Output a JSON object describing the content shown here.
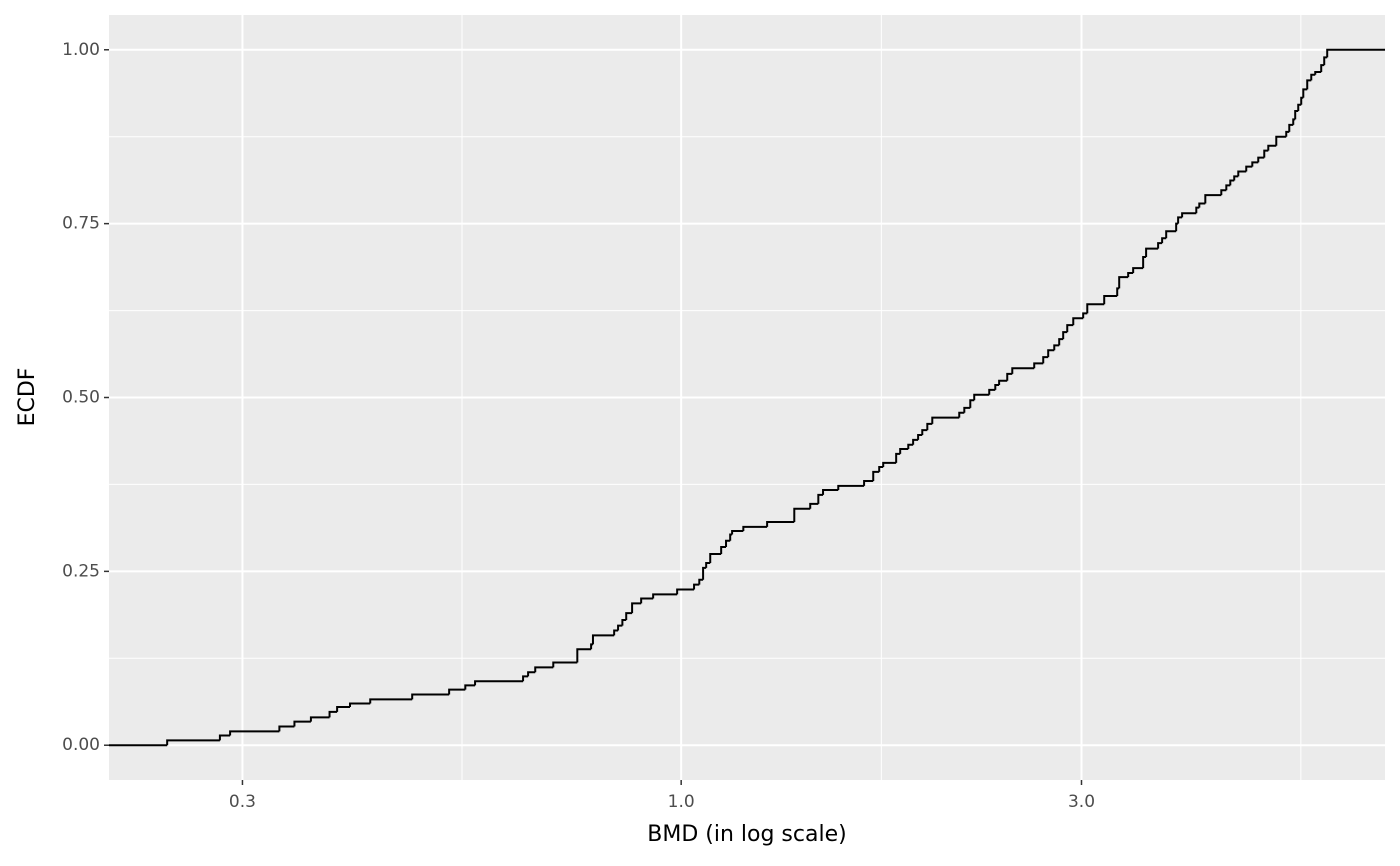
{
  "chart_data": {
    "type": "step",
    "xlabel": "BMD (in log scale)",
    "ylabel": "ECDF",
    "log_x": true,
    "grid": true,
    "color": "#000000",
    "xlim": [
      0.208,
      6.9
    ],
    "ylim": [
      -0.05,
      1.05
    ],
    "xticks": [
      0.3,
      {
        "value": 1,
        "label": "1.0"
      },
      {
        "value": 3,
        "label": "3.0"
      }
    ],
    "xminorticks": [
      0.548,
      1.732,
      5.477
    ],
    "yticks": [
      {
        "value": 0,
        "label": "0.00"
      },
      {
        "value": 0.25,
        "label": "0.25"
      },
      {
        "value": 0.5,
        "label": "0.50"
      },
      {
        "value": 0.75,
        "label": "0.75"
      },
      {
        "value": 1,
        "label": "1.00"
      }
    ],
    "yminorticks": [
      0.125,
      0.375,
      0.625,
      0.875
    ],
    "x": [
      0.208,
      0.244,
      0.282,
      0.29,
      0.332,
      0.346,
      0.362,
      0.381,
      0.389,
      0.403,
      0.426,
      0.478,
      0.529,
      0.553,
      0.568,
      0.648,
      0.657,
      0.67,
      0.704,
      0.752,
      0.781,
      0.785,
      0.832,
      0.841,
      0.851,
      0.86,
      0.874,
      0.896,
      0.926,
      0.989,
      1.036,
      1.051,
      1.062,
      1.071,
      1.083,
      1.116,
      1.131,
      1.144,
      1.15,
      1.186,
      1.266,
      1.364,
      1.425,
      1.457,
      1.476,
      1.539,
      1.652,
      1.694,
      1.722,
      1.741,
      1.804,
      1.824,
      1.865,
      1.89,
      1.916,
      1.938,
      1.965,
      1.992,
      2.145,
      2.175,
      2.211,
      2.235,
      2.329,
      2.368,
      2.393,
      2.447,
      2.481,
      2.635,
      2.701,
      2.738,
      2.784,
      2.822,
      2.853,
      2.885,
      2.933,
      3.014,
      3.048,
      3.193,
      3.309,
      3.327,
      3.41,
      3.457,
      3.553,
      3.582,
      3.702,
      3.743,
      3.785,
      3.89,
      3.911,
      3.954,
      4.111,
      4.145,
      4.214,
      4.403,
      4.464,
      4.513,
      4.562,
      4.613,
      4.715,
      4.794,
      4.873,
      4.954,
      5.009,
      5.12,
      5.262,
      5.306,
      5.364,
      5.393,
      5.438,
      5.483,
      5.514,
      5.574,
      5.636,
      5.698,
      5.792,
      5.84,
      5.888,
      6.9
    ],
    "values": [
      0,
      0.007,
      0.014,
      0.02,
      0.027,
      0.034,
      0.04,
      0.048,
      0.055,
      0.06,
      0.066,
      0.073,
      0.08,
      0.086,
      0.092,
      0.099,
      0.105,
      0.112,
      0.119,
      0.138,
      0.145,
      0.158,
      0.165,
      0.172,
      0.18,
      0.19,
      0.204,
      0.211,
      0.217,
      0.224,
      0.231,
      0.238,
      0.255,
      0.262,
      0.275,
      0.285,
      0.294,
      0.303,
      0.308,
      0.314,
      0.321,
      0.34,
      0.347,
      0.36,
      0.367,
      0.373,
      0.38,
      0.393,
      0.4,
      0.406,
      0.419,
      0.426,
      0.432,
      0.439,
      0.446,
      0.453,
      0.462,
      0.471,
      0.478,
      0.485,
      0.496,
      0.504,
      0.511,
      0.518,
      0.524,
      0.534,
      0.542,
      0.549,
      0.558,
      0.568,
      0.575,
      0.584,
      0.594,
      0.604,
      0.614,
      0.621,
      0.634,
      0.646,
      0.657,
      0.673,
      0.679,
      0.686,
      0.702,
      0.714,
      0.722,
      0.729,
      0.739,
      0.75,
      0.759,
      0.765,
      0.773,
      0.779,
      0.791,
      0.798,
      0.805,
      0.812,
      0.818,
      0.825,
      0.832,
      0.838,
      0.845,
      0.855,
      0.862,
      0.875,
      0.882,
      0.892,
      0.9,
      0.912,
      0.921,
      0.931,
      0.943,
      0.956,
      0.964,
      0.968,
      0.978,
      0.989,
      1.0,
      1.0
    ]
  }
}
